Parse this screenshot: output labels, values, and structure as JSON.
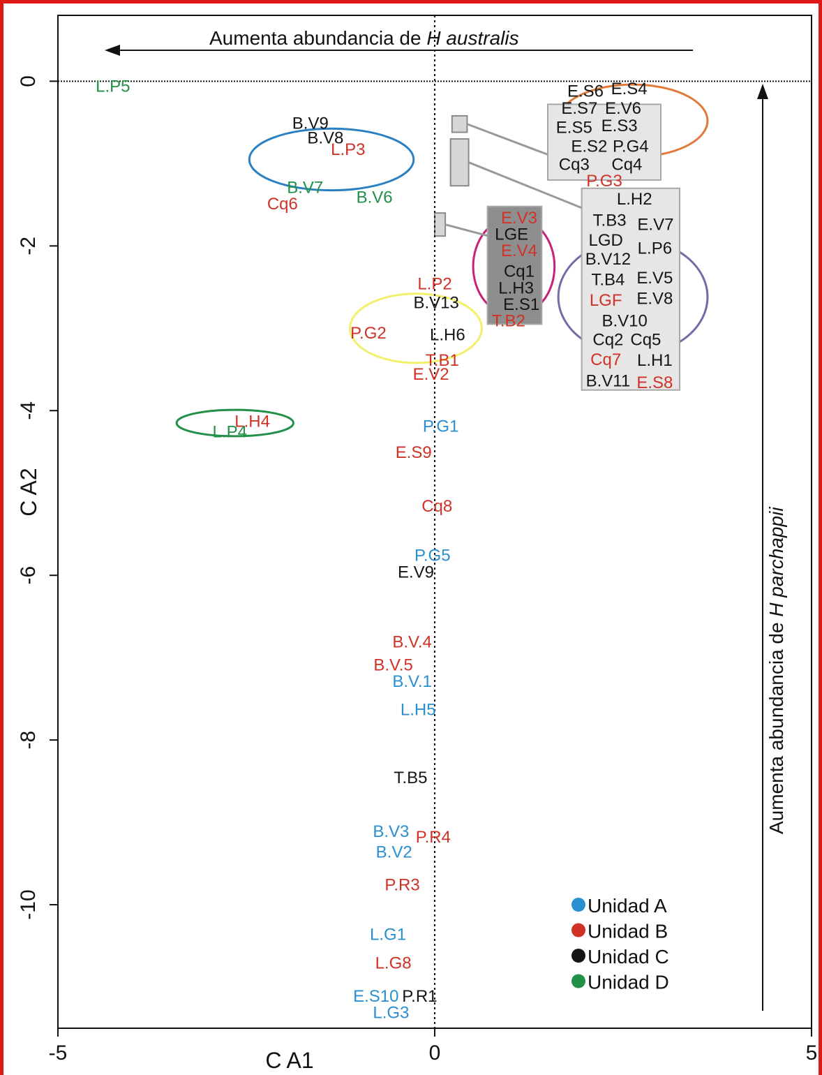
{
  "chart_data": {
    "type": "scatter",
    "xlabel": "C A1",
    "ylabel": "C A2",
    "xlim": [
      -5,
      5
    ],
    "ylim": [
      -11.5,
      0.8
    ],
    "x_ticks": [
      "-5",
      "0",
      "5"
    ],
    "y_ticks": [
      "0",
      "-2",
      "-4",
      "-6",
      "-8",
      "-10"
    ],
    "reference_lines": {
      "x": 0,
      "y": 0,
      "style": "dotted"
    },
    "annotations": {
      "top_arrow_prefix": "Aumenta abundancia de ",
      "top_arrow_italic": "H australis",
      "right_arrow_prefix": "Aumenta abundancia de ",
      "right_arrow_italic": "H parchappii"
    },
    "legend": {
      "placement": "bottom-right",
      "items": [
        {
          "label": "Unidad A",
          "color": "#2a8fd0"
        },
        {
          "label": "Unidad B",
          "color": "#d03228"
        },
        {
          "label": "Unidad C",
          "color": "#151515"
        },
        {
          "label": "Unidad D",
          "color": "#229048"
        }
      ]
    },
    "unit_colors": {
      "A": "#2a8fd0",
      "B": "#d03228",
      "C": "#151515",
      "D": "#229048"
    },
    "points": [
      {
        "label": "L.P5",
        "x": -4.27,
        "y": -0.05,
        "unit": "D"
      },
      {
        "label": "B.V9",
        "x": -1.65,
        "y": -0.5,
        "unit": "C"
      },
      {
        "label": "B.V8",
        "x": -1.45,
        "y": -0.68,
        "unit": "C"
      },
      {
        "label": "L.P3",
        "x": -1.15,
        "y": -0.82,
        "unit": "B"
      },
      {
        "label": "B.V7",
        "x": -1.72,
        "y": -1.28,
        "unit": "D"
      },
      {
        "label": "Cq6",
        "x": -2.02,
        "y": -1.48,
        "unit": "B"
      },
      {
        "label": "B.V6",
        "x": -0.8,
        "y": -1.4,
        "unit": "D"
      },
      {
        "label": "L.P2",
        "x": 0.0,
        "y": -2.45,
        "unit": "B"
      },
      {
        "label": "B.V13",
        "x": 0.02,
        "y": -2.68,
        "unit": "C"
      },
      {
        "label": "P.G2",
        "x": -0.88,
        "y": -3.05,
        "unit": "B"
      },
      {
        "label": "L.H6",
        "x": 0.17,
        "y": -3.07,
        "unit": "C"
      },
      {
        "label": "T.B1",
        "x": 0.1,
        "y": -3.38,
        "unit": "B"
      },
      {
        "label": "E.V2",
        "x": -0.05,
        "y": -3.55,
        "unit": "B"
      },
      {
        "label": "L.P4",
        "x": -2.72,
        "y": -4.25,
        "unit": "D"
      },
      {
        "label": "L.H4",
        "x": -2.42,
        "y": -4.12,
        "unit": "B"
      },
      {
        "label": "P.G1",
        "x": 0.08,
        "y": -4.18,
        "unit": "A"
      },
      {
        "label": "E.S9",
        "x": -0.28,
        "y": -4.5,
        "unit": "B"
      },
      {
        "label": "Cq8",
        "x": 0.03,
        "y": -5.15,
        "unit": "B"
      },
      {
        "label": "P.G5",
        "x": -0.03,
        "y": -5.75,
        "unit": "A"
      },
      {
        "label": "E.V9",
        "x": -0.25,
        "y": -5.95,
        "unit": "C"
      },
      {
        "label": "B.V.4",
        "x": -0.3,
        "y": -6.8,
        "unit": "B"
      },
      {
        "label": "B.V.5",
        "x": -0.55,
        "y": -7.08,
        "unit": "B"
      },
      {
        "label": "B.V.1",
        "x": -0.3,
        "y": -7.28,
        "unit": "A"
      },
      {
        "label": "L.H5",
        "x": -0.22,
        "y": -7.62,
        "unit": "A"
      },
      {
        "label": "T.B5",
        "x": -0.32,
        "y": -8.45,
        "unit": "C"
      },
      {
        "label": "B.V3",
        "x": -0.58,
        "y": -9.1,
        "unit": "A"
      },
      {
        "label": "P.R4",
        "x": -0.02,
        "y": -9.17,
        "unit": "B"
      },
      {
        "label": "B.V2",
        "x": -0.54,
        "y": -9.35,
        "unit": "A"
      },
      {
        "label": "P.R3",
        "x": -0.43,
        "y": -9.75,
        "unit": "B"
      },
      {
        "label": "L.G1",
        "x": -0.62,
        "y": -10.35,
        "unit": "A"
      },
      {
        "label": "L.G8",
        "x": -0.55,
        "y": -10.7,
        "unit": "B"
      },
      {
        "label": "E.S10",
        "x": -0.78,
        "y": -11.1,
        "unit": "A"
      },
      {
        "label": "P.R1",
        "x": -0.2,
        "y": -11.1,
        "unit": "C"
      },
      {
        "label": "L.G3",
        "x": -0.58,
        "y": -11.3,
        "unit": "A"
      }
    ],
    "groups": [
      {
        "name": "orange",
        "color": "#e07a3c",
        "centre": [
          2.63,
          -0.48
        ],
        "radius": [
          1.98,
          0.88
        ],
        "box": [
          1.5,
          3.0,
          -0.28,
          -1.2
        ],
        "box_fill": "#e6e6e6",
        "mini_box": [
          0.23,
          0.43,
          -0.42,
          -0.62
        ],
        "labels": [
          {
            "text": "E.S6",
            "x": 2.0,
            "y": -0.11,
            "unit": "C"
          },
          {
            "text": "E.S4",
            "x": 2.58,
            "y": -0.08,
            "unit": "C"
          },
          {
            "text": "E.S7",
            "x": 1.92,
            "y": -0.32,
            "unit": "C"
          },
          {
            "text": "E.V6",
            "x": 2.5,
            "y": -0.32,
            "unit": "C"
          },
          {
            "text": "E.S5",
            "x": 1.85,
            "y": -0.55,
            "unit": "C"
          },
          {
            "text": "E.S3",
            "x": 2.45,
            "y": -0.53,
            "unit": "C"
          },
          {
            "text": "E.S2",
            "x": 2.05,
            "y": -0.78,
            "unit": "C"
          },
          {
            "text": "P.G4",
            "x": 2.6,
            "y": -0.78,
            "unit": "C"
          },
          {
            "text": "Cq3",
            "x": 1.85,
            "y": -1.0,
            "unit": "C"
          },
          {
            "text": "Cq4",
            "x": 2.55,
            "y": -1.0,
            "unit": "C"
          },
          {
            "text": "P.G3",
            "x": 2.25,
            "y": -1.2,
            "unit": "B"
          }
        ]
      },
      {
        "name": "magenta",
        "color": "#c8207a",
        "centre": [
          1.05,
          -2.25
        ],
        "radius": [
          1.08,
          1.2
        ],
        "box": [
          0.7,
          1.42,
          -1.52,
          -2.95
        ],
        "box_fill": "#8e8e8e",
        "mini_box": [
          0.0,
          0.14,
          -1.6,
          -1.88
        ],
        "labels": [
          {
            "text": "E.V3",
            "x": 1.12,
            "y": -1.65,
            "unit": "B"
          },
          {
            "text": "LGE",
            "x": 1.02,
            "y": -1.85,
            "unit": "C"
          },
          {
            "text": "E.V4",
            "x": 1.12,
            "y": -2.05,
            "unit": "B"
          },
          {
            "text": "Cq1",
            "x": 1.12,
            "y": -2.3,
            "unit": "C"
          },
          {
            "text": "L.H3",
            "x": 1.08,
            "y": -2.5,
            "unit": "C"
          },
          {
            "text": "E.S1",
            "x": 1.15,
            "y": -2.7,
            "unit": "C"
          },
          {
            "text": "T.B2",
            "x": 0.98,
            "y": -2.9,
            "unit": "B"
          }
        ]
      },
      {
        "name": "purple",
        "color": "#7a68a8",
        "centre": [
          2.63,
          -2.62
        ],
        "radius": [
          1.98,
          1.4
        ],
        "box": [
          1.95,
          3.25,
          -1.3,
          -3.75
        ],
        "box_fill": "#e6e6e6",
        "mini_box": [
          0.21,
          0.45,
          -0.7,
          -1.27
        ],
        "labels": [
          {
            "text": "L.H2",
            "x": 2.65,
            "y": -1.42,
            "unit": "C"
          },
          {
            "text": "T.B3",
            "x": 2.32,
            "y": -1.68,
            "unit": "C"
          },
          {
            "text": "E.V7",
            "x": 2.93,
            "y": -1.73,
            "unit": "C"
          },
          {
            "text": "LGD",
            "x": 2.27,
            "y": -1.92,
            "unit": "C"
          },
          {
            "text": "L.P6",
            "x": 2.92,
            "y": -2.02,
            "unit": "C"
          },
          {
            "text": "B.V12",
            "x": 2.3,
            "y": -2.15,
            "unit": "C"
          },
          {
            "text": "T.B4",
            "x": 2.3,
            "y": -2.4,
            "unit": "C"
          },
          {
            "text": "E.V5",
            "x": 2.92,
            "y": -2.38,
            "unit": "C"
          },
          {
            "text": "LGF",
            "x": 2.27,
            "y": -2.65,
            "unit": "B"
          },
          {
            "text": "E.V8",
            "x": 2.92,
            "y": -2.63,
            "unit": "C"
          },
          {
            "text": "B.V10",
            "x": 2.52,
            "y": -2.9,
            "unit": "C"
          },
          {
            "text": "Cq2",
            "x": 2.3,
            "y": -3.13,
            "unit": "C"
          },
          {
            "text": "Cq5",
            "x": 2.8,
            "y": -3.13,
            "unit": "C"
          },
          {
            "text": "Cq7",
            "x": 2.27,
            "y": -3.37,
            "unit": "B"
          },
          {
            "text": "L.H1",
            "x": 2.92,
            "y": -3.38,
            "unit": "C"
          },
          {
            "text": "B.V11",
            "x": 2.3,
            "y": -3.63,
            "unit": "C"
          },
          {
            "text": "E.S8",
            "x": 2.92,
            "y": -3.65,
            "unit": "B"
          }
        ]
      }
    ],
    "ellipses": [
      {
        "name": "blue-ellipse",
        "color": "#2a80c0",
        "centre": [
          -1.37,
          -0.95
        ],
        "radius": [
          2.18,
          0.75
        ]
      },
      {
        "name": "yellow-ellipse",
        "color": "#f2ef6a",
        "centre": [
          -0.25,
          -3.0
        ],
        "radius": [
          1.75,
          0.84
        ]
      },
      {
        "name": "green-ellipse",
        "color": "#229048",
        "centre": [
          -2.65,
          -4.15
        ],
        "radius": [
          1.55,
          0.32
        ]
      }
    ]
  }
}
